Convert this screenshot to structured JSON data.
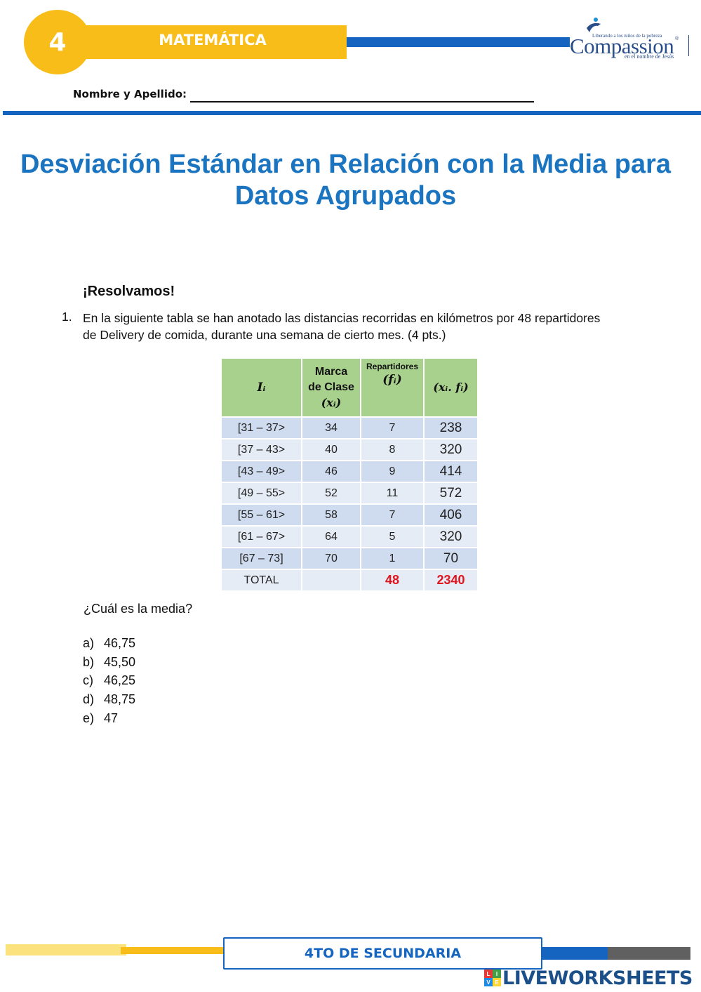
{
  "header": {
    "grade": "4",
    "subject": "MATEMÁTICA",
    "logo": {
      "name": "Compassion",
      "tagline_top": "Liberando a los niños de la pobreza",
      "tagline_bottom": "en el nombre de Jesús",
      "registered_mark": "®"
    },
    "name_label": "Nombre y Apellido:"
  },
  "title": "Desviación Estándar en Relación con la Media para Datos Agrupados",
  "subheading": "¡Resolvamos!",
  "question": {
    "number": "1.",
    "text": "En la siguiente tabla se han anotado las distancias recorridas en kilómetros por 48 repartidores de Delivery de comida, durante una semana de cierto mes. (4 pts.)"
  },
  "table": {
    "headers": {
      "col1": "Iᵢ",
      "col2_line1": "Marca",
      "col2_line2": "de Clase",
      "col2_line3": "(xᵢ)",
      "col3_line1": "Repartidores",
      "col3_line2": "(fᵢ)",
      "col4": "(xᵢ. fᵢ)"
    },
    "rows": [
      {
        "interval": "[31 – 37>",
        "mark": "34",
        "freq": "7",
        "product": "238"
      },
      {
        "interval": "[37 – 43>",
        "mark": "40",
        "freq": "8",
        "product": "320"
      },
      {
        "interval": "[43 – 49>",
        "mark": "46",
        "freq": "9",
        "product": "414"
      },
      {
        "interval": "[49 – 55>",
        "mark": "52",
        "freq": "11",
        "product": "572"
      },
      {
        "interval": "[55 – 61>",
        "mark": "58",
        "freq": "7",
        "product": "406"
      },
      {
        "interval": "[61 – 67>",
        "mark": "64",
        "freq": "5",
        "product": "320"
      },
      {
        "interval": "[67 – 73]",
        "mark": "70",
        "freq": "1",
        "product": "70"
      }
    ],
    "total": {
      "label": "TOTAL",
      "mark": "",
      "freq": "48",
      "product": "2340"
    },
    "total_color": "#e0141c",
    "header_color": "#a9d18e"
  },
  "prompt": "¿Cuál es la media?",
  "options": [
    {
      "letter": "a)",
      "value": "46,75"
    },
    {
      "letter": "b)",
      "value": "45,50"
    },
    {
      "letter": "c)",
      "value": "46,25"
    },
    {
      "letter": "d)",
      "value": "48,75"
    },
    {
      "letter": "e)",
      "value": "47"
    }
  ],
  "footer": {
    "level": "4TO DE SECUNDARIA",
    "watermark": "LIVEWORKSHEETS",
    "watermark_icon_letters": [
      "L",
      "I",
      "V",
      "E"
    ]
  },
  "colors": {
    "accent_yellow": "#f8bd19",
    "accent_blue": "#1565c0",
    "title_blue": "#1b74bf"
  }
}
